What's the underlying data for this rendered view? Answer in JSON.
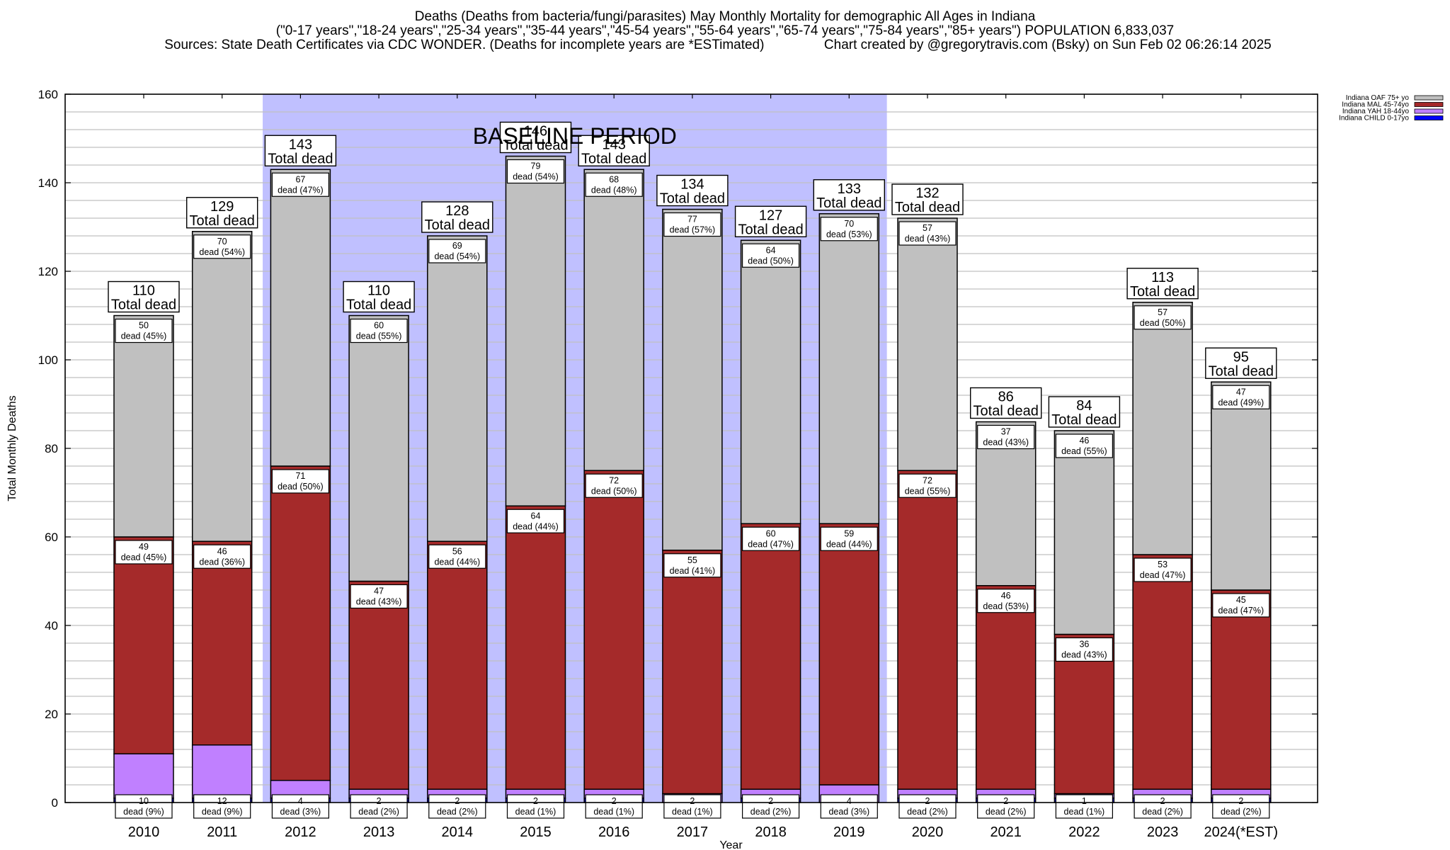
{
  "header": {
    "title_line1": "Deaths (Deaths from bacteria/fungi/parasites) May Monthly Mortality for demographic All Ages in Indiana",
    "title_line2": "(\"0-17 years\",\"18-24 years\",\"25-34 years\",\"35-44 years\",\"45-54 years\",\"55-64 years\",\"65-74 years\",\"75-84 years\",\"85+ years\") POPULATION 6,833,037",
    "title_line3": "Sources: State Death Certificates via CDC WONDER. (Deaths for incomplete years are *ESTimated)                Chart created by @gregorytravis.com (Bsky) on Sun Feb 02 06:26:14 2025"
  },
  "chart_data": {
    "type": "bar",
    "stacked": true,
    "title": "Deaths (Deaths from bacteria/fungi/parasites) May Monthly Mortality for demographic All Ages in Indiana",
    "xlabel": "Year",
    "ylabel": "Total Monthly Deaths",
    "ylim": [
      0,
      160
    ],
    "yticks": [
      0,
      20,
      40,
      60,
      80,
      100,
      120,
      140,
      160
    ],
    "minor_grid_step": 4,
    "grid": true,
    "legend_position": "top-right",
    "annotation": "BASELINE PERIOD",
    "baseline_range": [
      "2012",
      "2019"
    ],
    "total_label_suffix": "Total dead",
    "segment_label_prefix": "dead",
    "categories": [
      "2010",
      "2011",
      "2012",
      "2013",
      "2014",
      "2015",
      "2016",
      "2017",
      "2018",
      "2019",
      "2020",
      "2021",
      "2022",
      "2023",
      "2024(*EST)"
    ],
    "totals": [
      110,
      129,
      143,
      110,
      128,
      146,
      143,
      134,
      127,
      133,
      132,
      86,
      84,
      113,
      95
    ],
    "series": [
      {
        "name": "Indiana CHILD 0-17yo",
        "color": "#0000ff",
        "values": [
          1,
          1,
          1,
          1,
          1,
          1,
          1,
          0,
          1,
          0,
          1,
          1,
          1,
          1,
          1
        ],
        "labels": [
          "",
          "",
          "",
          "",
          "",
          "",
          "",
          "",
          "",
          "",
          "",
          "",
          "",
          "",
          ""
        ]
      },
      {
        "name": "Indiana YAH 18-44yo",
        "color": "#c080ff",
        "values": [
          10,
          12,
          4,
          2,
          2,
          2,
          2,
          2,
          2,
          4,
          2,
          2,
          1,
          2,
          2
        ],
        "labels": [
          "10\ndead (9%)",
          "12\ndead (9%)",
          "4\ndead (3%)",
          "2\ndead (2%)",
          "2\ndead (2%)",
          "2\ndead (1%)",
          "2\ndead (1%)",
          "2\ndead (1%)",
          "2\ndead (2%)",
          "4\ndead (3%)",
          "2\ndead (2%)",
          "2\ndead (2%)",
          "1\ndead (1%)",
          "2\ndead (2%)",
          "2\ndead (2%)"
        ]
      },
      {
        "name": "Indiana MAL 45-74yo",
        "color": "#a52a2a",
        "values": [
          49,
          46,
          71,
          47,
          56,
          64,
          72,
          55,
          60,
          59,
          72,
          46,
          36,
          53,
          45
        ],
        "labels": [
          "49\ndead (45%)",
          "46\ndead (36%)",
          "71\ndead (50%)",
          "47\ndead (43%)",
          "56\ndead (44%)",
          "64\ndead (44%)",
          "72\ndead (50%)",
          "55\ndead (41%)",
          "60\ndead (47%)",
          "59\ndead (44%)",
          "72\ndead (55%)",
          "46\ndead (53%)",
          "36\ndead (43%)",
          "53\ndead (47%)",
          "45\ndead (47%)"
        ]
      },
      {
        "name": "Indiana OAF 75+ yo",
        "color": "#c0c0c0",
        "values": [
          50,
          70,
          67,
          60,
          69,
          79,
          68,
          77,
          64,
          70,
          57,
          37,
          46,
          57,
          47
        ],
        "labels": [
          "50\ndead (45%)",
          "70\ndead (54%)",
          "67\ndead (47%)",
          "60\ndead (55%)",
          "69\ndead (54%)",
          "79\ndead (54%)",
          "68\ndead (48%)",
          "77\ndead (57%)",
          "64\ndead (50%)",
          "70\ndead (53%)",
          "57\ndead (43%)",
          "37\ndead (43%)",
          "46\ndead (55%)",
          "57\ndead (50%)",
          "47\ndead (49%)"
        ]
      }
    ],
    "legend_order": [
      "Indiana OAF 75+ yo",
      "Indiana MAL 45-74yo",
      "Indiana YAH 18-44yo",
      "Indiana CHILD 0-17yo"
    ],
    "colors": {
      "baseline_shade": "#c0c0ff",
      "grid": "#c0c0c0"
    }
  }
}
